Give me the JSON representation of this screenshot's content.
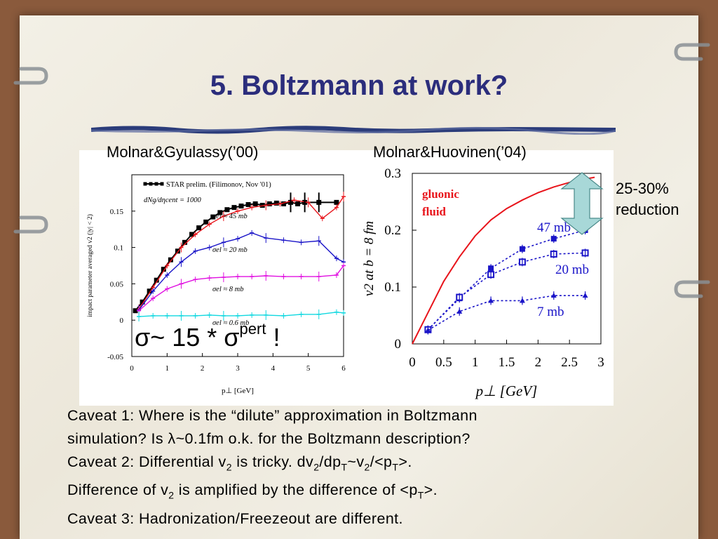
{
  "slide": {
    "title": "5. Boltzmann at work?",
    "left_panel_label": "Molnar&Gyulassy(’00)",
    "right_panel_label": "Molnar&Huovinen(’04)",
    "reduction_line1": "25-30%",
    "reduction_line2": "reduction",
    "sigma_part1": "σ~ 15 * σ",
    "sigma_sup": "pert",
    "sigma_part2": " !"
  },
  "caveats": {
    "c1_a": "Caveat 1: Where is the “dilute” approximation in Boltzmann",
    "c1_b_pre": "simulation? Is ",
    "c1_b_lambda": "λ",
    "c1_b_post": "~0.1fm o.k. for the Boltzmann description?",
    "c2_a_pre": "Caveat 2: Differential v",
    "c2_a_s1": "2",
    "c2_a_mid1": " is tricky. dv",
    "c2_a_s2": "2",
    "c2_a_mid2": "/dp",
    "c2_a_s3": "T",
    "c2_a_mid3": "~v",
    "c2_a_s4": "2",
    "c2_a_mid4": "/<p",
    "c2_a_s5": "T",
    "c2_a_end": ">.",
    "c2_b_pre": "Difference of v",
    "c2_b_s1": "2",
    "c2_b_mid": " is amplified by the difference of <p",
    "c2_b_s2": "T",
    "c2_b_end": ">.",
    "c3": "Caveat 3: Hadronization/Freezeout are different."
  },
  "chart_data": [
    {
      "type": "line",
      "xlabel": "p⊥ [GeV]",
      "ylabel": "impact parameter averaged v2 (|y| < 2)",
      "xlim": [
        0,
        6
      ],
      "ylim": [
        -0.05,
        0.2
      ],
      "x_ticks": [
        "0",
        "1",
        "2",
        "3",
        "4",
        "5",
        "6"
      ],
      "y_ticks": [
        "-0.05",
        "0",
        "0.05",
        "0.1",
        "0.15"
      ],
      "legend_entries": [
        "STAR prelim. (Filimonov, Nov '01)",
        "dNg/dηcent = 1000"
      ],
      "legend_position": "top-left",
      "annotations": [
        "σel ≈ 45 mb",
        "σel ≈ 20 mb",
        "σel ≈ 8 mb",
        "σel ≈ 0.6 mb"
      ],
      "colors": {
        "data": "#000000",
        "s45": "#e8141b",
        "s20": "#1a14c8",
        "s8": "#e010e0",
        "s06": "#10d8e0"
      },
      "series": [
        {
          "name": "STAR prelim. (Filimonov, Nov '01)",
          "x": [
            0.1,
            0.3,
            0.5,
            0.7,
            0.9,
            1.1,
            1.3,
            1.5,
            1.7,
            1.9,
            2.1,
            2.3,
            2.5,
            2.7,
            2.9,
            3.1,
            3.3,
            3.5,
            3.7,
            3.9,
            4.1,
            4.3,
            4.5,
            4.7,
            4.9,
            5.3,
            5.8
          ],
          "y": [
            0.013,
            0.025,
            0.04,
            0.055,
            0.07,
            0.083,
            0.095,
            0.107,
            0.118,
            0.127,
            0.135,
            0.142,
            0.148,
            0.152,
            0.155,
            0.157,
            0.159,
            0.16,
            0.158,
            0.16,
            0.161,
            0.16,
            0.162,
            0.16,
            0.162,
            0.162,
            0.162
          ]
        },
        {
          "name": "σel ≈ 45 mb",
          "x": [
            0.2,
            0.6,
            1.0,
            1.4,
            1.8,
            2.2,
            2.6,
            3.0,
            3.4,
            3.8,
            4.2,
            4.6,
            5.0,
            5.4,
            5.8,
            6.0
          ],
          "y": [
            0.015,
            0.045,
            0.075,
            0.1,
            0.118,
            0.132,
            0.143,
            0.15,
            0.155,
            0.158,
            0.16,
            0.165,
            0.162,
            0.14,
            0.155,
            0.17
          ]
        },
        {
          "name": "σel ≈ 20 mb",
          "x": [
            0.2,
            0.6,
            1.0,
            1.4,
            1.8,
            2.2,
            2.6,
            3.0,
            3.4,
            3.8,
            4.3,
            4.8,
            5.3,
            5.8,
            6.0
          ],
          "y": [
            0.014,
            0.04,
            0.062,
            0.08,
            0.095,
            0.1,
            0.107,
            0.112,
            0.12,
            0.113,
            0.11,
            0.107,
            0.109,
            0.085,
            0.08
          ]
        },
        {
          "name": "σel ≈ 8 mb",
          "x": [
            0.2,
            0.6,
            1.0,
            1.4,
            1.8,
            2.2,
            2.6,
            3.0,
            3.4,
            3.8,
            4.3,
            4.8,
            5.3,
            5.8,
            6.0
          ],
          "y": [
            0.013,
            0.03,
            0.043,
            0.05,
            0.056,
            0.058,
            0.059,
            0.06,
            0.06,
            0.061,
            0.06,
            0.06,
            0.06,
            0.062,
            0.075
          ]
        },
        {
          "name": "σel ≈ 0.6 mb",
          "x": [
            0.2,
            0.6,
            1.0,
            1.4,
            1.8,
            2.2,
            2.6,
            3.0,
            3.4,
            3.8,
            4.3,
            4.8,
            5.3,
            5.8,
            6.0
          ],
          "y": [
            0.005,
            0.006,
            0.006,
            0.006,
            0.006,
            0.007,
            0.006,
            0.006,
            0.007,
            0.007,
            0.006,
            0.008,
            0.008,
            0.011,
            0.01
          ]
        }
      ]
    },
    {
      "type": "line",
      "xlabel": "p⊥ [GeV]",
      "ylabel": "v2 at b = 8 fm",
      "xlim": [
        0,
        3
      ],
      "ylim": [
        0,
        0.3
      ],
      "x_ticks": [
        "0",
        "0.5",
        "1",
        "1.5",
        "2",
        "2.5",
        "3"
      ],
      "y_ticks": [
        "0",
        "0.1",
        "0.2",
        "0.3"
      ],
      "annotations": [
        "gluonic fluid",
        "47 mb",
        "20 mb",
        "7 mb"
      ],
      "colors": {
        "fluid": "#e8141b",
        "mc": "#1a14c8",
        "arrow": "#a8d8d8"
      },
      "series": [
        {
          "name": "gluonic fluid",
          "x": [
            0,
            0.25,
            0.5,
            0.75,
            1.0,
            1.25,
            1.5,
            1.75,
            2.0,
            2.25,
            2.5,
            2.75,
            2.9
          ],
          "y": [
            0,
            0.055,
            0.11,
            0.153,
            0.19,
            0.218,
            0.238,
            0.253,
            0.266,
            0.276,
            0.284,
            0.29,
            0.293
          ]
        },
        {
          "name": "47 mb",
          "x": [
            0.25,
            0.75,
            1.25,
            1.75,
            2.25,
            2.75
          ],
          "y": [
            0.025,
            0.08,
            0.133,
            0.167,
            0.185,
            0.2
          ]
        },
        {
          "name": "20 mb",
          "x": [
            0.25,
            0.75,
            1.25,
            1.75,
            2.25,
            2.75
          ],
          "y": [
            0.025,
            0.082,
            0.122,
            0.144,
            0.158,
            0.16
          ]
        },
        {
          "name": "7 mb",
          "x": [
            0.25,
            0.75,
            1.25,
            1.75,
            2.25,
            2.75
          ],
          "y": [
            0.024,
            0.057,
            0.076,
            0.076,
            0.085,
            0.085
          ]
        }
      ]
    }
  ]
}
